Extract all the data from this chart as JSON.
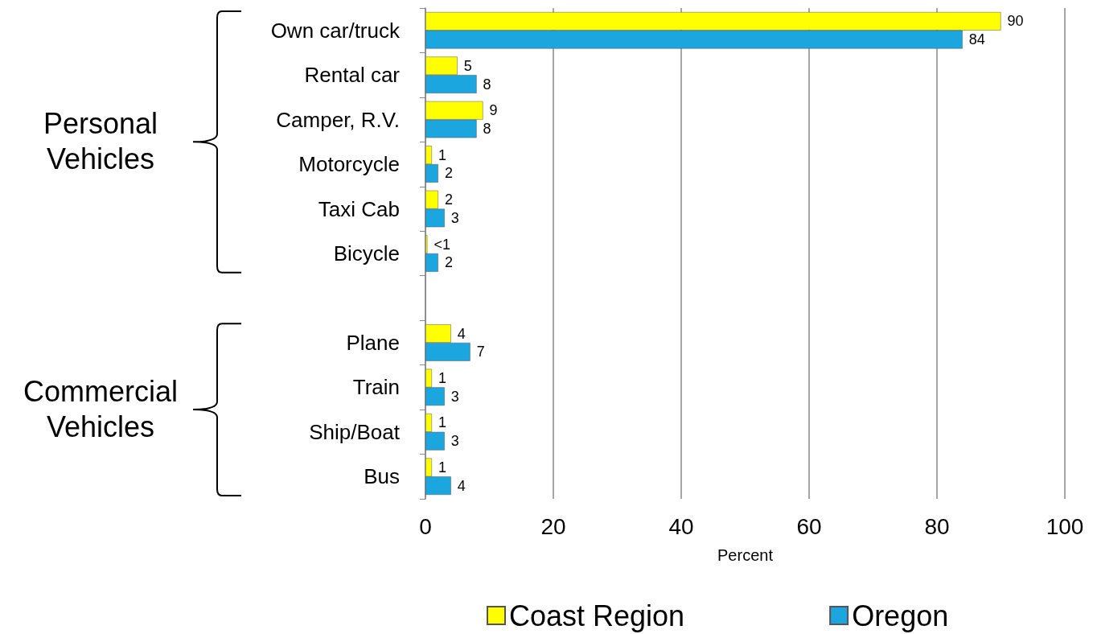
{
  "chart_data": {
    "type": "bar",
    "orientation": "horizontal",
    "categories": [
      "Own car/truck",
      "Rental car",
      "Camper, R.V.",
      "Motorcycle",
      "Taxi Cab",
      "Bicycle",
      null,
      "Plane",
      "Train",
      "Ship/Boat",
      "Bus"
    ],
    "series": [
      {
        "name": "Coast Region",
        "color": "#ffff00",
        "values": [
          90,
          5,
          9,
          1,
          2,
          0.3,
          null,
          4,
          1,
          1,
          1
        ],
        "value_labels": [
          "90",
          "5",
          "9",
          "1",
          "2",
          "<1",
          null,
          "4",
          "1",
          "1",
          "1"
        ]
      },
      {
        "name": "Oregon",
        "color": "#1ca6e0",
        "values": [
          84,
          8,
          8,
          2,
          3,
          2,
          null,
          7,
          3,
          3,
          4
        ],
        "value_labels": [
          "84",
          "8",
          "8",
          "2",
          "3",
          "2",
          null,
          "7",
          "3",
          "3",
          "4"
        ]
      }
    ],
    "xlabel": "Percent",
    "xlim": [
      0,
      100
    ],
    "xticks": [
      0,
      20,
      40,
      60,
      80,
      100
    ],
    "grid": "x",
    "legend": "bottom",
    "annotations": [
      "Personal Vehicles",
      "Commercial Vehicles"
    ]
  }
}
